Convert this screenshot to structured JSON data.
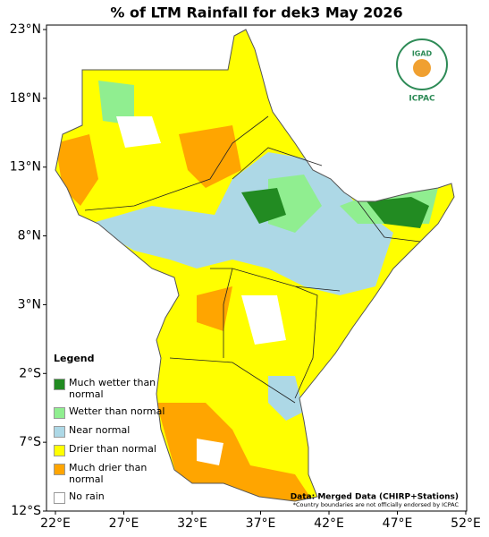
{
  "title": "% of LTM Rainfall for dek3 May 2026",
  "lat_labels": [
    "23°N",
    "18°N",
    "13°N",
    "8°N",
    "3°N",
    "2°S",
    "7°S",
    "12°S"
  ],
  "lon_labels": [
    "22°E",
    "27°E",
    "32°E",
    "37°E",
    "42°E",
    "47°E",
    "52°E"
  ],
  "logo": {
    "name": "IGAD",
    "org": "ICPAC"
  },
  "legend": {
    "title": "Legend",
    "items": [
      {
        "label": "Much wetter than normal",
        "color": "#228b22"
      },
      {
        "label": "Wetter than normal",
        "color": "#90ee90"
      },
      {
        "label": "Near normal",
        "color": "#add8e6"
      },
      {
        "label": "Drier than normal",
        "color": "#ffff00"
      },
      {
        "label": "Much drier than normal",
        "color": "#ffa500"
      },
      {
        "label": "No rain",
        "color": "#ffffff"
      }
    ]
  },
  "source": "Data: Merged Data (CHIRP+Stations)",
  "note": "*Country boundaries are not officially endorsed by ICPAC"
}
